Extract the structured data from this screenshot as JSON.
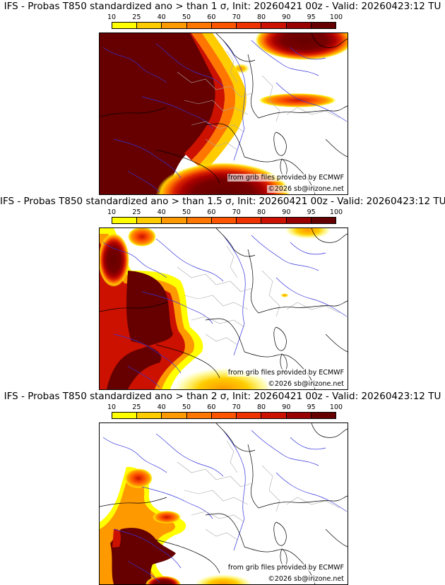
{
  "colorbar": {
    "labels": [
      "10",
      "25",
      "40",
      "50",
      "60",
      "70",
      "80",
      "90",
      "95",
      "100"
    ],
    "colors": [
      "#ffff00",
      "#ffcc00",
      "#ff9900",
      "#ff7700",
      "#ff5500",
      "#ee3300",
      "#cc1100",
      "#990000",
      "#660000"
    ]
  },
  "panels": [
    {
      "title": "IFS - Probas T850  standardized ano > than 1 σ, Init: 20260421 00z - Valid: 20260423:12 TU",
      "source_credit": "from grib files provided by ECMWF",
      "copyright": "©2026 sb@irizone.net"
    },
    {
      "title": "IFS - Probas T850  standardized ano > than 1.5 σ, Init: 20260421 00z - Valid: 20260423:12 TU",
      "source_credit": "from grib files provided by ECMWF",
      "copyright": "©2026 sb@irizone.net"
    },
    {
      "title": "IFS - Probas T850  standardized ano > than 2 σ, Init: 20260421 00z - Valid: 20260423:12 TU",
      "source_credit": "from grib files provided by ECMWF",
      "copyright": "©2026 sb@irizone.net"
    }
  ]
}
